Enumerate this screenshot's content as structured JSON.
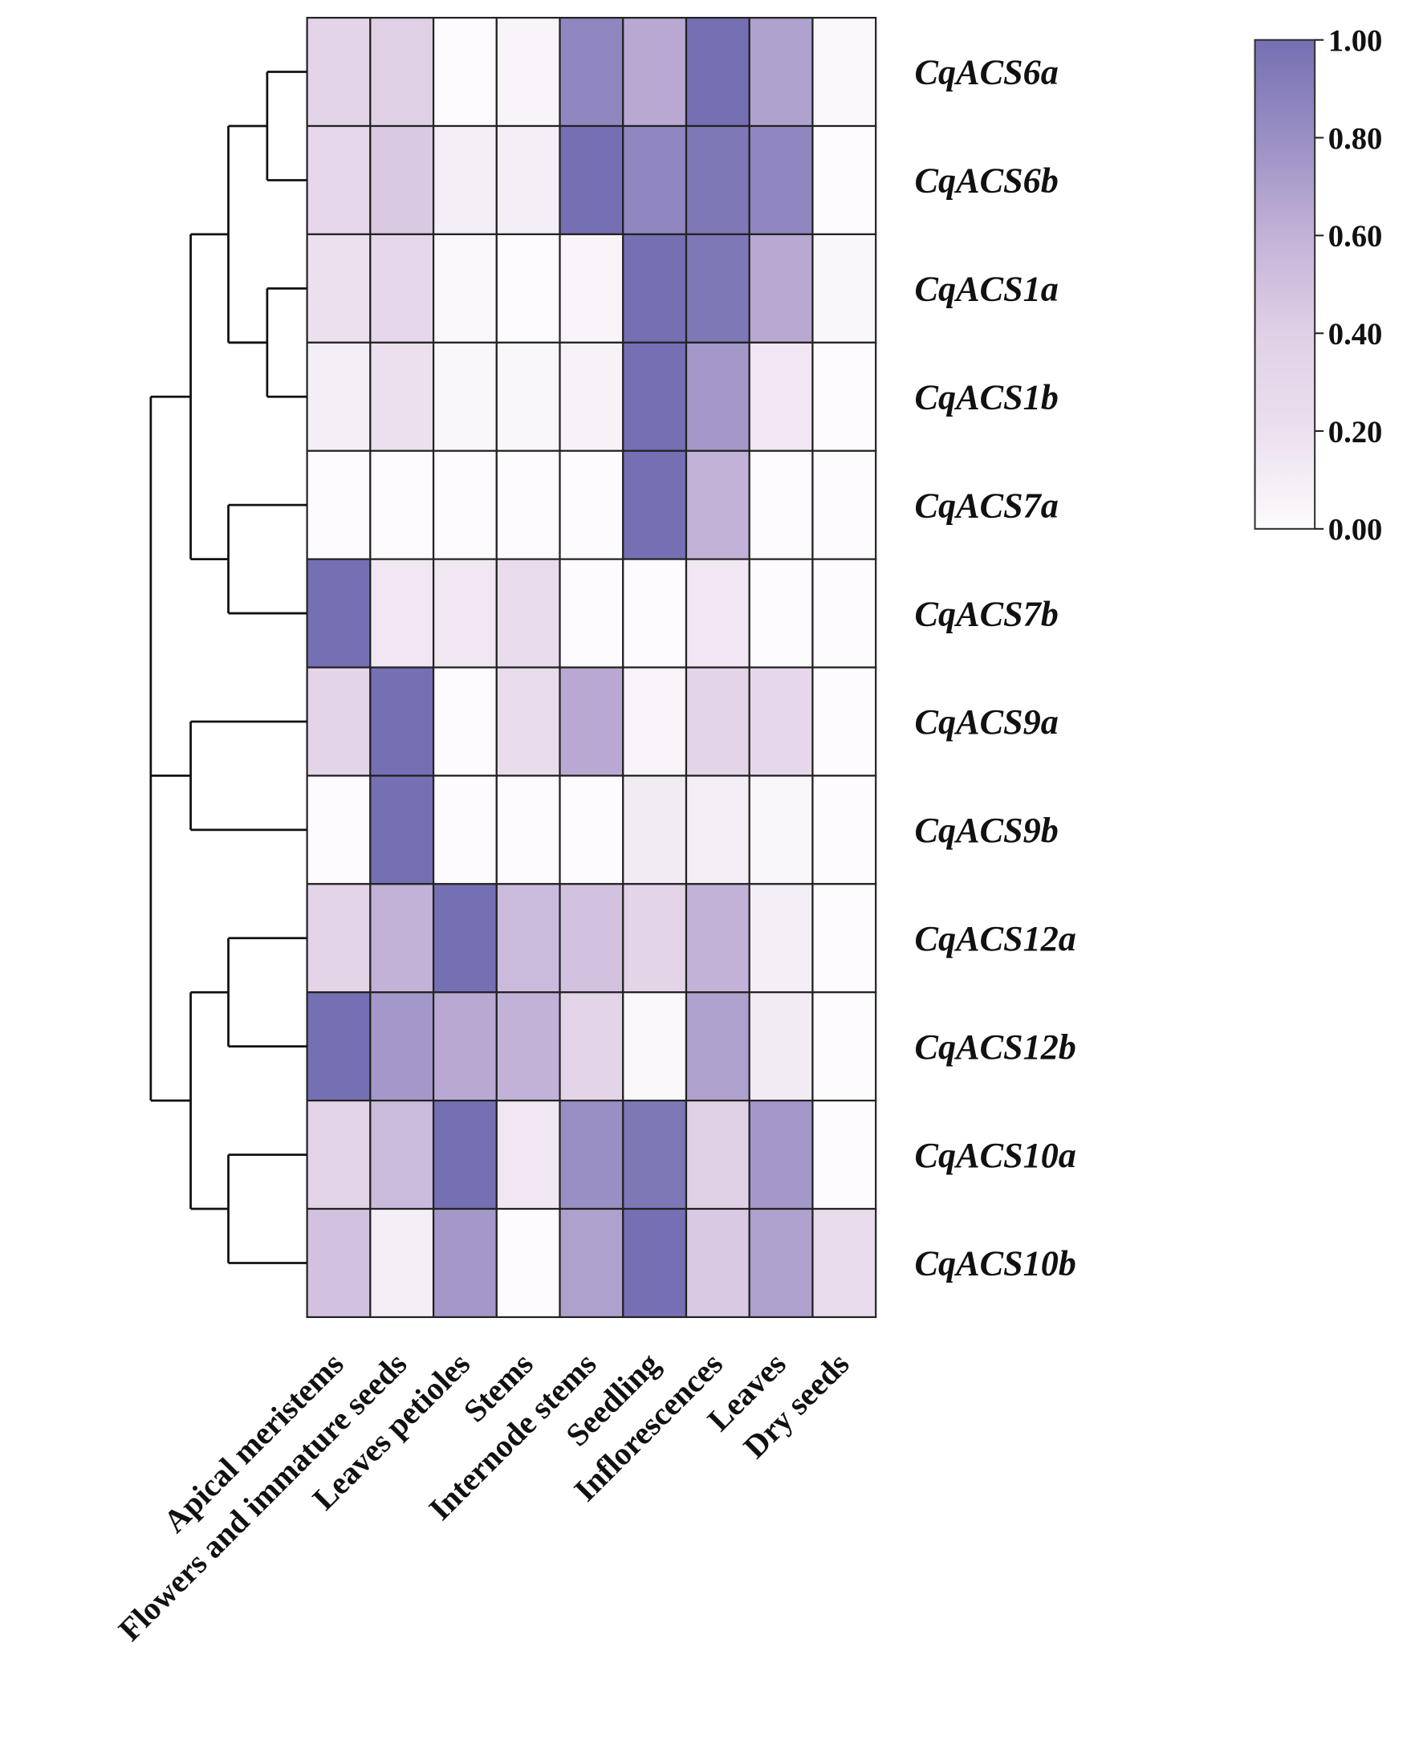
{
  "chart_data": {
    "type": "heatmap",
    "title": "",
    "rows": [
      "CqACS6a",
      "CqACS6b",
      "CqACS1a",
      "CqACS1b",
      "CqACS7a",
      "CqACS7b",
      "CqACS9a",
      "CqACS9b",
      "CqACS12a",
      "CqACS12b",
      "CqACS10a",
      "CqACS10b"
    ],
    "columns": [
      "Apical meristems",
      "Flowers and immature seeds",
      "Leaves petioles",
      "Stems",
      "Internode stems",
      "Seedling",
      "Inflorescences",
      "Leaves",
      "Dry seeds"
    ],
    "values": [
      [
        0.35,
        0.4,
        0.0,
        0.05,
        0.85,
        0.65,
        1.0,
        0.7,
        0.02
      ],
      [
        0.3,
        0.45,
        0.1,
        0.1,
        1.0,
        0.85,
        0.95,
        0.85,
        0.0
      ],
      [
        0.2,
        0.3,
        0.02,
        0.0,
        0.05,
        1.0,
        0.95,
        0.65,
        0.03
      ],
      [
        0.1,
        0.2,
        0.03,
        0.03,
        0.07,
        1.0,
        0.75,
        0.15,
        0.0
      ],
      [
        0.0,
        0.0,
        0.0,
        0.0,
        0.0,
        1.0,
        0.6,
        0.0,
        0.0
      ],
      [
        1.0,
        0.15,
        0.15,
        0.25,
        0.0,
        0.0,
        0.15,
        0.0,
        0.0
      ],
      [
        0.35,
        1.0,
        0.0,
        0.25,
        0.65,
        0.05,
        0.35,
        0.3,
        0.0
      ],
      [
        0.0,
        1.0,
        0.0,
        0.0,
        0.0,
        0.12,
        0.1,
        0.03,
        0.0
      ],
      [
        0.35,
        0.6,
        1.0,
        0.55,
        0.5,
        0.35,
        0.6,
        0.1,
        0.0
      ],
      [
        1.0,
        0.75,
        0.65,
        0.6,
        0.35,
        0.02,
        0.7,
        0.12,
        0.0
      ],
      [
        0.35,
        0.55,
        1.0,
        0.15,
        0.8,
        0.95,
        0.4,
        0.75,
        0.0
      ],
      [
        0.5,
        0.1,
        0.75,
        0.0,
        0.7,
        1.0,
        0.45,
        0.7,
        0.25
      ]
    ],
    "colorbar": {
      "range": [
        0,
        1
      ],
      "ticks": [
        "1.00",
        "0.80",
        "0.60",
        "0.40",
        "0.20",
        "0.00"
      ],
      "colors": [
        "#fdfbfd",
        "#ebe0ee",
        "#e0d0e6",
        "#c3b2d7",
        "#9a8fc4",
        "#7570b3"
      ]
    },
    "row_dendrogram": true
  }
}
